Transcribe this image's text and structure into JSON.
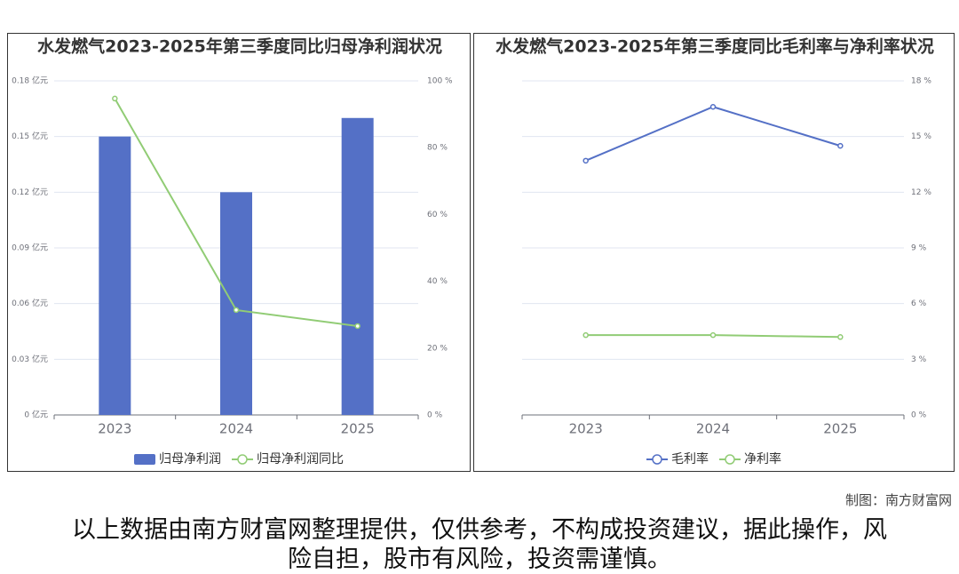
{
  "chart_data": [
    {
      "type": "bar",
      "title": "水发燃气2023-2025年第三季度同比归母净利润状况",
      "categories": [
        "2023",
        "2024",
        "2025"
      ],
      "series": [
        {
          "name": "归母净利润",
          "type": "bar",
          "color": "#5470c6",
          "values": [
            0.15,
            0.12,
            0.16
          ]
        },
        {
          "name": "归母净利润同比",
          "type": "line",
          "axis": "y2",
          "color": "#91cc75",
          "values": [
            94.7,
            31.4,
            26.6
          ]
        }
      ],
      "ylim": [
        0,
        0.18
      ],
      "yticks": [
        {
          "value": 0,
          "label": "0 亿元"
        },
        {
          "value": 0.03,
          "label": "0.03 亿元"
        },
        {
          "value": 0.06,
          "label": "0.06 亿元"
        },
        {
          "value": 0.09,
          "label": "0.09 亿元"
        },
        {
          "value": 0.12,
          "label": "0.12 亿元"
        },
        {
          "value": 0.15,
          "label": "0.15 亿元"
        },
        {
          "value": 0.18,
          "label": "0.18 亿元"
        }
      ],
      "y2lim": [
        0,
        100
      ],
      "y2ticks": [
        {
          "value": 0,
          "label": "0 %"
        },
        {
          "value": 20,
          "label": "20 %"
        },
        {
          "value": 40,
          "label": "40 %"
        },
        {
          "value": 60,
          "label": "60 %"
        },
        {
          "value": 80,
          "label": "80 %"
        },
        {
          "value": 100,
          "label": "100 %"
        }
      ],
      "grid": true
    },
    {
      "type": "line",
      "title": "水发燃气2023-2025年第三季度同比毛利率与净利率状况",
      "categories": [
        "2023",
        "2024",
        "2025"
      ],
      "series": [
        {
          "name": "毛利率",
          "type": "line",
          "color": "#5470c6",
          "values": [
            13.7,
            16.6,
            14.5
          ]
        },
        {
          "name": "净利率",
          "type": "line",
          "color": "#91cc75",
          "values": [
            4.3,
            4.3,
            4.2
          ]
        }
      ],
      "ylim": [
        0,
        18
      ],
      "yticks": [
        {
          "value": 0,
          "label": "0 %"
        },
        {
          "value": 3,
          "label": "3 %"
        },
        {
          "value": 6,
          "label": "6 %"
        },
        {
          "value": 9,
          "label": "9 %"
        },
        {
          "value": 12,
          "label": "12 %"
        },
        {
          "value": 15,
          "label": "15 %"
        },
        {
          "value": 18,
          "label": "18 %"
        }
      ],
      "grid": true
    }
  ],
  "credit": "制图：南方财富网",
  "disclaimer": "以上数据由南方财富网整理提供，仅供参考，不构成投资建议，据此操作，风险自担，股市有风险，投资需谨慎。"
}
